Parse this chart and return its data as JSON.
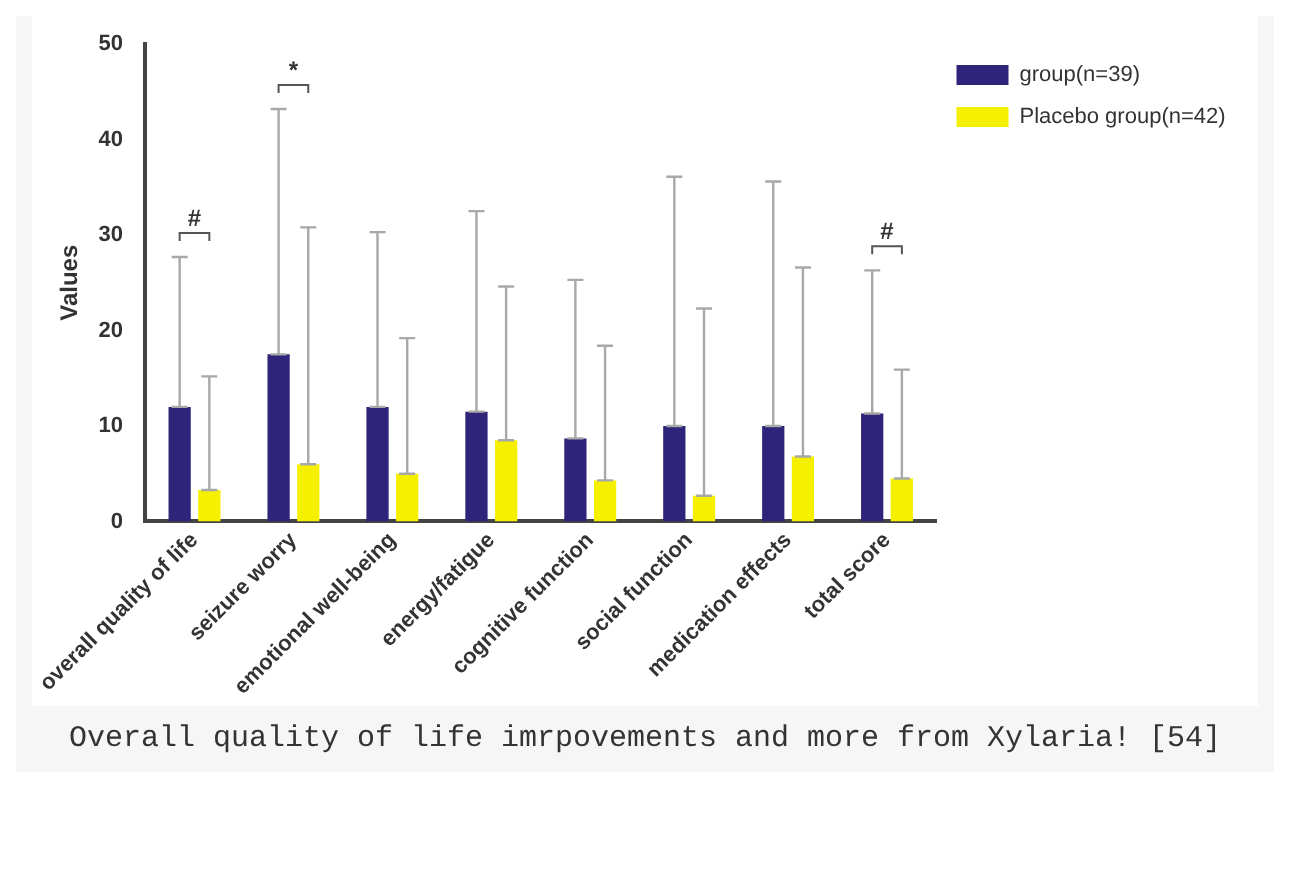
{
  "chart_data": {
    "type": "bar",
    "ylabel": "Values",
    "categories": [
      "overall quality of life",
      "seizure worry",
      "emotional well-being",
      "energy/fatigue",
      "cognitive function",
      "social function",
      "medication effects",
      "total score"
    ],
    "series": [
      {
        "name": "group(n=39)",
        "color": "#2e2479",
        "values": [
          12,
          17.5,
          12,
          11.5,
          8.7,
          10,
          10,
          11.3
        ],
        "errors": [
          [
            12,
            27.7
          ],
          [
            17.5,
            43.2
          ],
          [
            12,
            30.3
          ],
          [
            11.5,
            32.5
          ],
          [
            8.7,
            25.3
          ],
          [
            10,
            36.1
          ],
          [
            10,
            35.6
          ],
          [
            11.3,
            26.3
          ]
        ]
      },
      {
        "name": "Placebo group(n=42)",
        "color": "#f5f000",
        "values": [
          3.3,
          6,
          5,
          8.5,
          4.3,
          2.7,
          6.8,
          4.5
        ],
        "errors": [
          [
            3.3,
            15.2
          ],
          [
            6,
            30.8
          ],
          [
            5,
            19.2
          ],
          [
            8.5,
            24.6
          ],
          [
            4.3,
            18.4
          ],
          [
            2.7,
            22.3
          ],
          [
            6.8,
            26.6
          ],
          [
            4.5,
            15.9
          ]
        ]
      }
    ],
    "ylim": [
      0,
      50
    ],
    "yticks": [
      0,
      10,
      20,
      30,
      40,
      50
    ],
    "grid": false,
    "legend": "top right",
    "annotations": [
      "#",
      "*",
      "#",
      "Overall quality of life imrpovements and more from Xylaria! [54]"
    ]
  }
}
